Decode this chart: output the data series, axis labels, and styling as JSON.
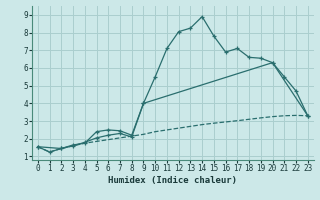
{
  "xlabel": "Humidex (Indice chaleur)",
  "bg_color": "#cce8e8",
  "grid_color": "#aacece",
  "line_color": "#2a6e6e",
  "xlim": [
    -0.5,
    23.5
  ],
  "ylim": [
    0.8,
    9.5
  ],
  "xticks": [
    0,
    1,
    2,
    3,
    4,
    5,
    6,
    7,
    8,
    9,
    10,
    11,
    12,
    13,
    14,
    15,
    16,
    17,
    18,
    19,
    20,
    21,
    22,
    23
  ],
  "yticks": [
    1,
    2,
    3,
    4,
    5,
    6,
    7,
    8,
    9
  ],
  "line1_x": [
    0,
    1,
    2,
    3,
    4,
    5,
    6,
    7,
    8,
    9,
    10,
    11,
    12,
    13,
    14,
    15,
    16,
    17,
    18,
    19,
    20,
    21,
    22,
    23
  ],
  "line1_y": [
    1.55,
    1.25,
    1.45,
    1.6,
    1.75,
    1.85,
    1.95,
    2.05,
    2.15,
    2.25,
    2.4,
    2.5,
    2.6,
    2.7,
    2.8,
    2.88,
    2.95,
    3.02,
    3.1,
    3.18,
    3.25,
    3.3,
    3.32,
    3.3
  ],
  "line2_x": [
    0,
    1,
    2,
    3,
    4,
    5,
    6,
    7,
    8,
    9,
    10,
    11,
    12,
    13,
    14,
    15,
    16,
    17,
    18,
    19,
    20,
    21,
    22,
    23
  ],
  "line2_y": [
    1.55,
    1.25,
    1.45,
    1.6,
    1.8,
    2.05,
    2.2,
    2.3,
    2.1,
    4.0,
    5.5,
    7.1,
    8.05,
    8.25,
    8.9,
    7.8,
    6.9,
    7.1,
    6.6,
    6.55,
    6.3,
    5.5,
    4.7,
    3.3
  ],
  "line3_x": [
    0,
    2,
    3,
    4,
    5,
    6,
    7,
    8,
    9,
    20,
    23
  ],
  "line3_y": [
    1.55,
    1.45,
    1.65,
    1.75,
    2.4,
    2.5,
    2.45,
    2.2,
    4.0,
    6.3,
    3.3
  ]
}
